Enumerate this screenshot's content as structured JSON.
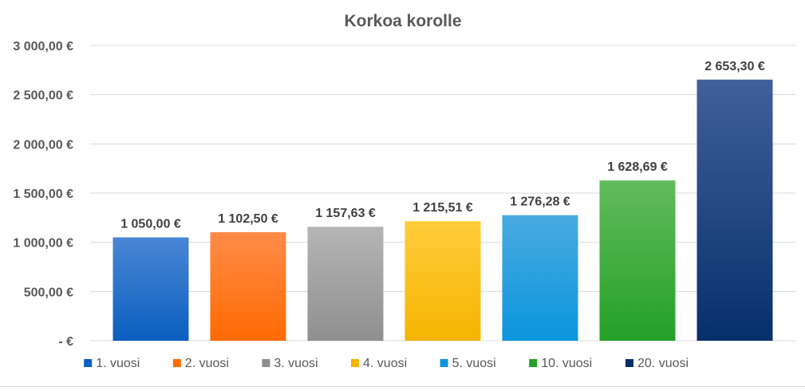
{
  "chart_data": {
    "type": "bar",
    "title": "Korkoa korolle",
    "xlabel": "",
    "ylabel": "",
    "categories": [
      "1. vuosi",
      "2. vuosi",
      "3. vuosi",
      "4. vuosi",
      "5. vuosi",
      "10. vuosi",
      "20. vuosi"
    ],
    "values": [
      1050.0,
      1102.5,
      1157.63,
      1215.51,
      1276.28,
      1628.69,
      2653.3
    ],
    "value_labels": [
      "1 050,00 €",
      "1 102,50 €",
      "1 157,63 €",
      "1 215,51 €",
      "1 276,28 €",
      "1 628,69 €",
      "2 653,30 €"
    ],
    "ylim": [
      0,
      3000
    ],
    "y_ticks": [
      0,
      500,
      1000,
      1500,
      2000,
      2500,
      3000
    ],
    "y_tick_labels": [
      "-  €",
      "500,00 €",
      "1 000,00 €",
      "1 500,00 €",
      "2 000,00 €",
      "2 500,00 €",
      "3 000,00 €"
    ],
    "grid": true,
    "legend_position": "bottom",
    "colors": [
      {
        "top": "#4a86d4",
        "bottom": "#0a5fc0"
      },
      {
        "top": "#ff8c4a",
        "bottom": "#ff6a00"
      },
      {
        "top": "#b5b5b5",
        "bottom": "#8f8f8f"
      },
      {
        "top": "#ffcd3c",
        "bottom": "#f5b400"
      },
      {
        "top": "#4aaae0",
        "bottom": "#0a96dd"
      },
      {
        "top": "#62bb5c",
        "bottom": "#24a028"
      },
      {
        "top": "#40609a",
        "bottom": "#06306a"
      }
    ]
  }
}
